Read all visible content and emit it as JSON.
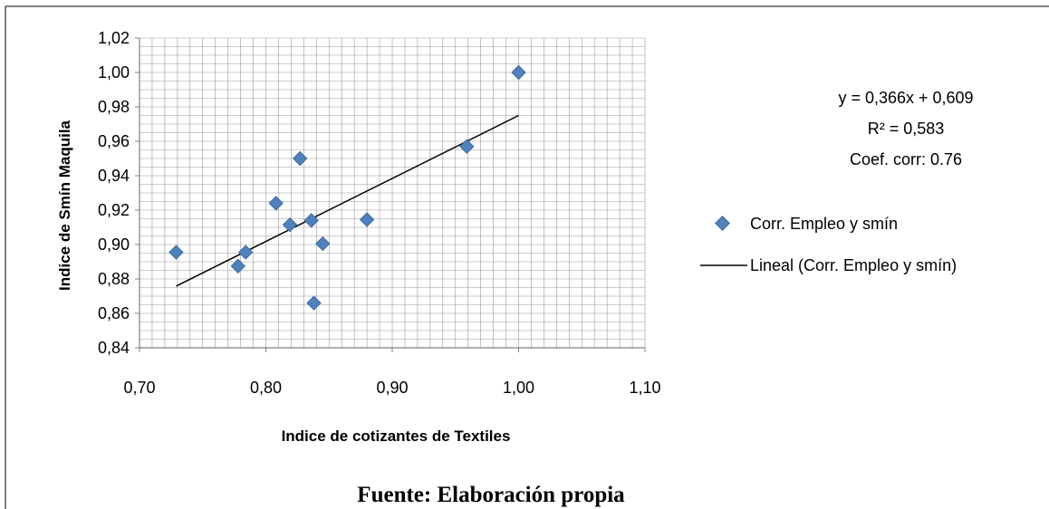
{
  "chart_data": {
    "type": "scatter",
    "xlabel": "Indice de cotizantes de Textiles",
    "ylabel": "Indice de Smín Maquila",
    "xlim": [
      0.7,
      1.1
    ],
    "ylim": [
      0.84,
      1.02
    ],
    "x_ticks": [
      "0,70",
      "0,80",
      "0,90",
      "1,00",
      "1,10"
    ],
    "y_ticks": [
      "0,84",
      "0,86",
      "0,88",
      "0,90",
      "0,92",
      "0,94",
      "0,96",
      "0,98",
      "1,00",
      "1,02"
    ],
    "x_tick_values": [
      0.7,
      0.8,
      0.9,
      1.0,
      1.1
    ],
    "y_tick_values": [
      0.84,
      0.86,
      0.88,
      0.9,
      0.92,
      0.94,
      0.96,
      0.98,
      1.0,
      1.02
    ],
    "grid": true,
    "legend_position": "right",
    "marker_color": "#4f81bd",
    "trend_color": "#000000",
    "series": [
      {
        "name": "Corr. Empleo y smín",
        "points": [
          {
            "x": 0.729,
            "y": 0.8955
          },
          {
            "x": 0.778,
            "y": 0.8875
          },
          {
            "x": 0.784,
            "y": 0.8955
          },
          {
            "x": 0.808,
            "y": 0.924
          },
          {
            "x": 0.819,
            "y": 0.9115
          },
          {
            "x": 0.827,
            "y": 0.95
          },
          {
            "x": 0.836,
            "y": 0.914
          },
          {
            "x": 0.838,
            "y": 0.866
          },
          {
            "x": 0.845,
            "y": 0.9005
          },
          {
            "x": 0.88,
            "y": 0.9145
          },
          {
            "x": 0.959,
            "y": 0.957
          },
          {
            "x": 1.0,
            "y": 1.0
          }
        ]
      }
    ],
    "trendline": {
      "name": "Lineal (Corr. Empleo y smín)",
      "slope": 0.366,
      "intercept": 0.609,
      "x_range": [
        0.729,
        1.0
      ]
    },
    "annotation": {
      "equation": "y = 0,366x + 0,609",
      "r2": "R² = 0,583",
      "coef": "Coef. corr: 0.76"
    }
  },
  "legend": {
    "series_label": "Corr. Empleo y smín",
    "trend_label": "Lineal (Corr. Empleo y smín)"
  },
  "source": "Fuente: Elaboración propia"
}
